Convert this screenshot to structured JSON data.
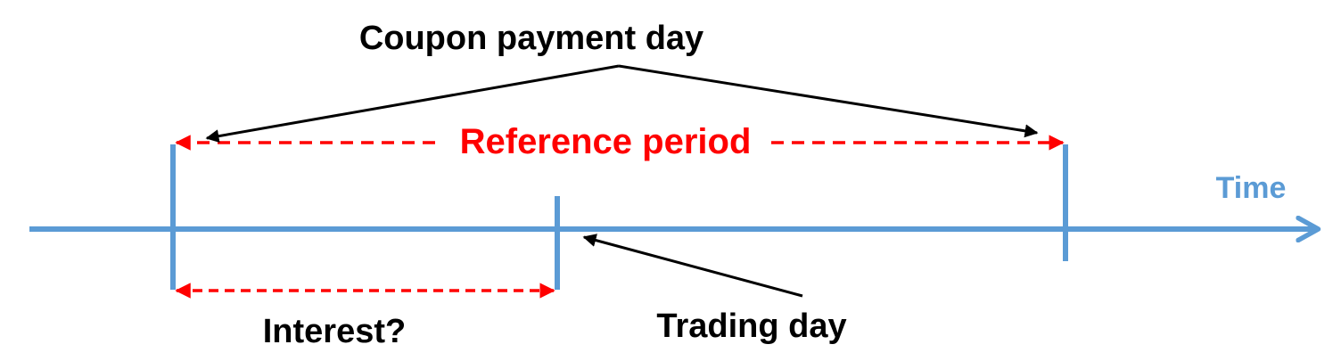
{
  "labels": {
    "coupon_payment_day": "Coupon payment day",
    "reference_period": "Reference period",
    "time": "Time",
    "interest": "Interest?",
    "trading_day": "Trading day"
  },
  "colors": {
    "timeline": "#5b9bd5",
    "period_arrow": "#ff0000",
    "annotation_arrow": "#000000",
    "text": "#000000"
  }
}
